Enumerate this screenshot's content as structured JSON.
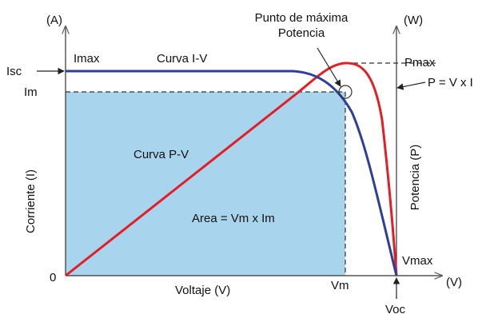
{
  "units": {
    "current": "(A)",
    "power": "(W)",
    "voltage": "(V)"
  },
  "axes": {
    "left_label": "Corriente (I)",
    "right_label": "Potencia (P)",
    "bottom_label": "Voltaje (V)",
    "origin": "0"
  },
  "markers": {
    "isc": "Isc",
    "imax": "Imax",
    "im": "Im",
    "vm": "Vm",
    "voc": "Voc",
    "vmax": "Vmax",
    "pmax": "Pmax"
  },
  "curves": {
    "iv": {
      "label": "Curva I-V",
      "color": "#2e3f97"
    },
    "pv": {
      "label": "Curva P-V",
      "color": "#e31e24"
    }
  },
  "annotations": {
    "mpp_line1": "Punto de máxima",
    "mpp_line2": "Potencia",
    "formula": "P = V x I",
    "area": "Area = Vm x Im"
  },
  "colors": {
    "area_fill": "#a9d4ee",
    "axis": "#333333",
    "dashed": "#333333"
  }
}
